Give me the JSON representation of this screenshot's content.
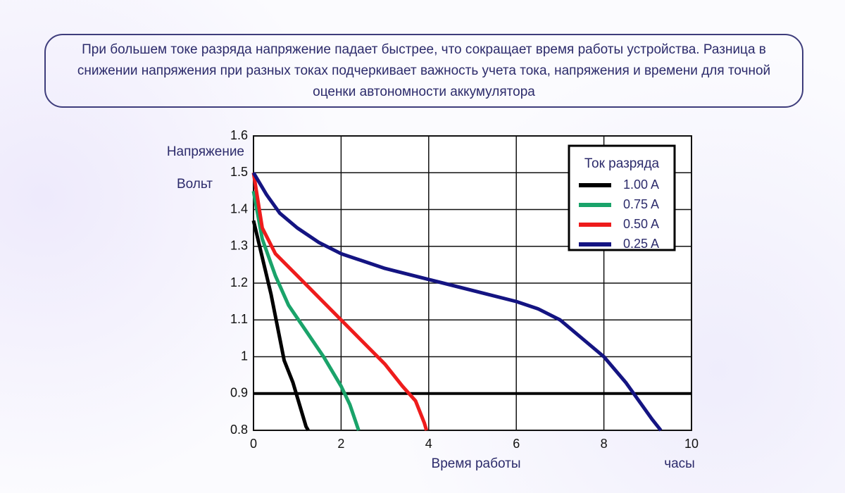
{
  "description": "При большем токе разряда напряжение падает быстрее, что сокращает время работы устройства. Разница в снижении напряжения при разных токах подчеркивает важность учета тока, напряжения и времени для точной оценки автономности аккумулятора",
  "chart_data": {
    "type": "line",
    "ylabel": "Напряжение",
    "yunit": "Вольт",
    "xlabel": "Время работы",
    "xunit": "часы",
    "legend_title": "Ток разряда",
    "legend": "upper right",
    "grid": true,
    "xlim": [
      0,
      10
    ],
    "xticks": [
      0,
      2,
      4,
      6,
      8,
      10
    ],
    "ylim": [
      0.8,
      1.6
    ],
    "yticks": [
      1.6,
      1.5,
      1.4,
      1.3,
      1.2,
      1.1,
      1,
      0.9,
      0.8
    ],
    "threshold": 0.9,
    "series": [
      {
        "name": "1.00 A",
        "color": "#000000",
        "x": [
          0,
          0.2,
          0.4,
          0.6,
          0.7,
          0.9,
          1.0,
          1.2,
          1.25
        ],
        "values": [
          1.37,
          1.27,
          1.17,
          1.05,
          0.99,
          0.93,
          0.89,
          0.81,
          0.8
        ]
      },
      {
        "name": "0.75 A",
        "color": "#1aa36a",
        "x": [
          0,
          0.2,
          0.5,
          0.8,
          1.2,
          1.6,
          2.0,
          2.2,
          2.4
        ],
        "values": [
          1.45,
          1.32,
          1.22,
          1.14,
          1.07,
          1.0,
          0.92,
          0.87,
          0.8
        ]
      },
      {
        "name": "0.50 A",
        "color": "#ee1c1c",
        "x": [
          0,
          0.2,
          0.5,
          1,
          1.5,
          2,
          2.5,
          3,
          3.4,
          3.7,
          3.9,
          3.95
        ],
        "values": [
          1.5,
          1.35,
          1.28,
          1.22,
          1.16,
          1.1,
          1.04,
          0.98,
          0.92,
          0.88,
          0.82,
          0.8
        ]
      },
      {
        "name": "0.25 A",
        "color": "#141482",
        "x": [
          0,
          0.3,
          0.6,
          1,
          1.5,
          2,
          2.5,
          3,
          4,
          5,
          6,
          6.5,
          7,
          7.5,
          8,
          8.5,
          8.8,
          9.1,
          9.3
        ],
        "values": [
          1.5,
          1.44,
          1.39,
          1.35,
          1.31,
          1.28,
          1.26,
          1.24,
          1.21,
          1.18,
          1.15,
          1.13,
          1.1,
          1.05,
          1.0,
          0.93,
          0.88,
          0.83,
          0.8
        ]
      }
    ]
  }
}
